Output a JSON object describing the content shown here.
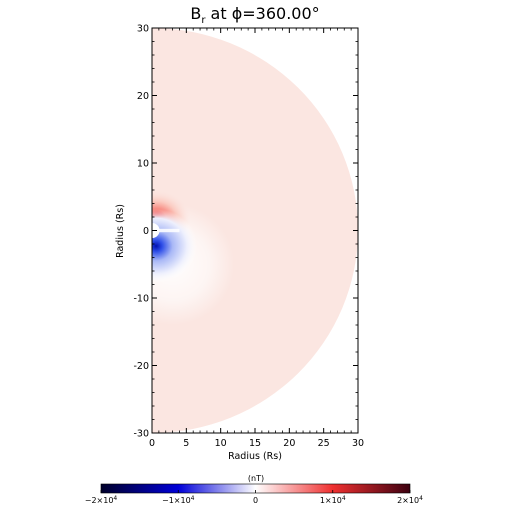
{
  "chart_data": {
    "type": "heatmap",
    "title": {
      "main": "B",
      "sub": "r",
      "rest": " at ϕ=360.00°"
    },
    "xlabel": "Radius (Rs)",
    "ylabel": "Radius (Rs)",
    "xlim": [
      0,
      30
    ],
    "ylim": [
      -30,
      30
    ],
    "x_ticks": [
      "0",
      "5",
      "10",
      "15",
      "20",
      "25",
      "30"
    ],
    "y_ticks": [
      "-30",
      "-20",
      "-10",
      "0",
      "10",
      "20",
      "30"
    ],
    "domain": "half-disk, radius 0 to 30 Rs",
    "dipole_pole_north_color": "#cc0010",
    "dipole_pole_south_color": "#0018c8",
    "background_field_color": "#fbe6e1",
    "colorbar": {
      "label": "(nT)",
      "range": [
        -20000,
        20000
      ],
      "ticks": [
        {
          "value": -20000,
          "base": "−2×10",
          "exp": "4"
        },
        {
          "value": -10000,
          "base": "−1×10",
          "exp": "4"
        },
        {
          "value": 0,
          "base": "0",
          "exp": ""
        },
        {
          "value": 10000,
          "base": "1×10",
          "exp": "4"
        },
        {
          "value": 20000,
          "base": "2×10",
          "exp": "4"
        }
      ],
      "colors": [
        "#00002a",
        "#0000d8",
        "#ffffff",
        "#ef3030",
        "#3c0010"
      ]
    }
  }
}
